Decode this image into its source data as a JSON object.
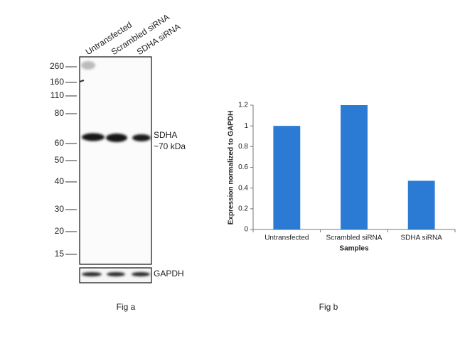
{
  "blot": {
    "lanes": [
      "Untransfected",
      "Scrambled siRNA",
      "SDHA siRNA"
    ],
    "markers": [
      260,
      160,
      110,
      80,
      60,
      50,
      40,
      30,
      20,
      15
    ],
    "target_label": "SDHA",
    "target_size": "~70 kDa",
    "loading_label": "GAPDH",
    "caption": "Fig a"
  },
  "chart_data": {
    "type": "bar",
    "caption": "Fig b",
    "x_label": "Samples",
    "y_label": "Expression normalized to GAPDH",
    "categories": [
      "Untransfected",
      "Scrambled siRNA",
      "SDHA siRNA"
    ],
    "values": [
      1,
      1.2,
      0.47
    ],
    "color": "#2b7bd4",
    "ylim": [
      0,
      1.2
    ],
    "yticks": [
      0,
      0.2,
      0.4,
      0.6,
      0.8,
      1,
      1.2
    ],
    "grid": false
  }
}
